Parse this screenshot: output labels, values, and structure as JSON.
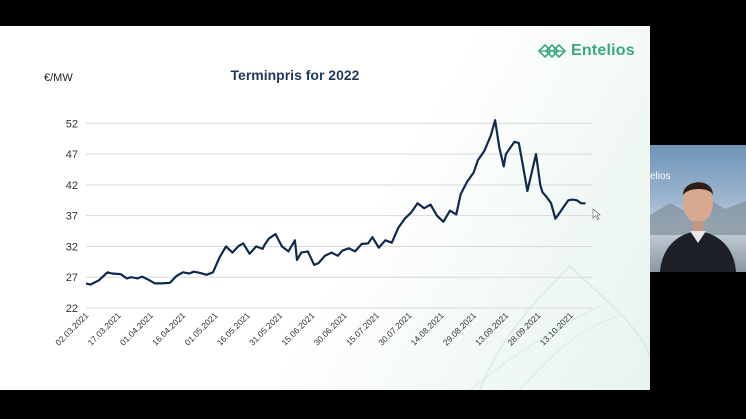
{
  "brand": {
    "name": "Entelios",
    "color": "#3aa883"
  },
  "webcam": {
    "label": "elios"
  },
  "chart_data": {
    "type": "line",
    "title": "Terminpris for 2022",
    "ylabel": "€/MW",
    "xlabel": "",
    "ylim": [
      22,
      54
    ],
    "yticks": [
      22,
      27,
      32,
      37,
      42,
      47,
      52
    ],
    "grid": true,
    "line_color": "#0f2a4e",
    "x_start": "2021-03-02",
    "x_end": "2021-10-23",
    "xtick_labels": [
      "02.03.2021",
      "17.03.2021",
      "01.04.2021",
      "16.04.2021",
      "01.05.2021",
      "16.05.2021",
      "31.05.2021",
      "15.06.2021",
      "30.06.2021",
      "15.07.2021",
      "30.07.2021",
      "14.08.2021",
      "29.08.2021",
      "13.09.2021",
      "28.09.2021",
      "13.10.2021"
    ],
    "series": [
      {
        "x": [
          "2021-03-02",
          "2021-03-04",
          "2021-03-08",
          "2021-03-12",
          "2021-03-14",
          "2021-03-18",
          "2021-03-21",
          "2021-03-23",
          "2021-03-26",
          "2021-03-28",
          "2021-03-31",
          "2021-04-03",
          "2021-04-06",
          "2021-04-10",
          "2021-04-13",
          "2021-04-16",
          "2021-04-19",
          "2021-04-21",
          "2021-04-24",
          "2021-04-27",
          "2021-04-30",
          "2021-05-03",
          "2021-05-06",
          "2021-05-09",
          "2021-05-12",
          "2021-05-14",
          "2021-05-17",
          "2021-05-20",
          "2021-05-23",
          "2021-05-24",
          "2021-05-26",
          "2021-05-29",
          "2021-06-01",
          "2021-06-04",
          "2021-06-07",
          "2021-06-08",
          "2021-06-10",
          "2021-06-13",
          "2021-06-16",
          "2021-06-18",
          "2021-06-21",
          "2021-06-24",
          "2021-06-27",
          "2021-06-29",
          "2021-07-02",
          "2021-07-05",
          "2021-07-08",
          "2021-07-11",
          "2021-07-13",
          "2021-07-16",
          "2021-07-19",
          "2021-07-22",
          "2021-07-25",
          "2021-07-28",
          "2021-07-31",
          "2021-08-03",
          "2021-08-06",
          "2021-08-09",
          "2021-08-12",
          "2021-08-15",
          "2021-08-18",
          "2021-08-21",
          "2021-08-23",
          "2021-08-26",
          "2021-08-29",
          "2021-08-31",
          "2021-09-03",
          "2021-09-06",
          "2021-09-08",
          "2021-09-10",
          "2021-09-12",
          "2021-09-13",
          "2021-09-15",
          "2021-09-17",
          "2021-09-19",
          "2021-09-21",
          "2021-09-23",
          "2021-09-25",
          "2021-09-27",
          "2021-09-29",
          "2021-09-30",
          "2021-10-02",
          "2021-10-04",
          "2021-10-06",
          "2021-10-08",
          "2021-10-10",
          "2021-10-12",
          "2021-10-14",
          "2021-10-16",
          "2021-10-18",
          "2021-10-20"
        ],
        "y": [
          26.0,
          25.8,
          26.5,
          27.8,
          27.6,
          27.5,
          26.8,
          27.0,
          26.8,
          27.1,
          26.6,
          26.0,
          26.0,
          26.1,
          27.2,
          27.8,
          27.6,
          27.9,
          27.7,
          27.4,
          27.8,
          30.2,
          32.0,
          31.0,
          32.1,
          32.5,
          30.8,
          32.0,
          31.6,
          32.3,
          33.3,
          34.0,
          32.0,
          31.2,
          33.0,
          29.8,
          31.0,
          31.2,
          29.0,
          29.3,
          30.5,
          31.0,
          30.5,
          31.3,
          31.7,
          31.2,
          32.4,
          32.5,
          33.5,
          31.8,
          33.0,
          32.6,
          35.0,
          36.5,
          37.5,
          39.0,
          38.2,
          38.8,
          37.0,
          36.0,
          37.8,
          37.2,
          40.5,
          42.5,
          44.0,
          46.0,
          47.5,
          50.0,
          52.5,
          48.0,
          45.0,
          47.0,
          48.0,
          49.0,
          48.8,
          45.0,
          41.0,
          44.0,
          47.0,
          42.0,
          40.8,
          40.0,
          39.0,
          36.5,
          37.5,
          38.5,
          39.5,
          39.6,
          39.5,
          39.0,
          39.0
        ]
      }
    ]
  }
}
